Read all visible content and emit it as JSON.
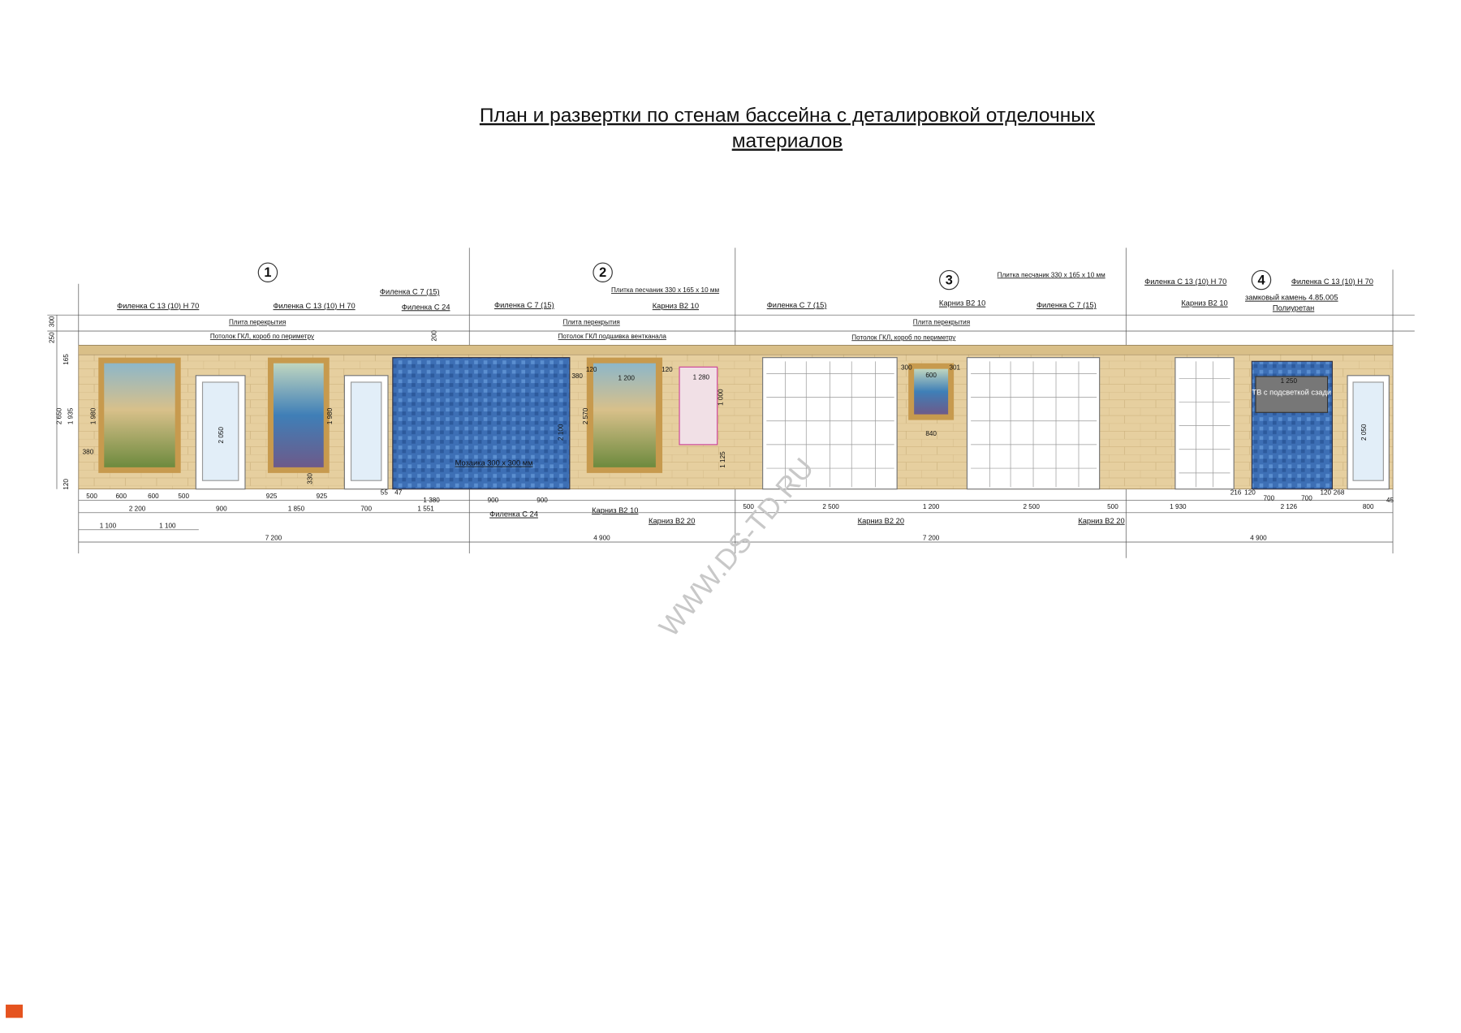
{
  "title": [
    "План и развертки по стенам бассейна с деталировкой отделочных",
    "материалов"
  ],
  "walls": [
    "1",
    "2",
    "3",
    "4"
  ],
  "labels": [
    "Филенка С 13 (10) Н 70",
    "Филенка С 13 (10) Н 70",
    "Филенка С 7 (15)",
    "Филенка С 24",
    "Филенка С 7 (15)",
    "Плитка песчаник 330 x 165 x 10 мм",
    "Карниз В2 10",
    "Филенка С 7 (15)",
    "Карниз В2 10",
    "Филенка С 7 (15)",
    "Плитка песчаник 330 x 165 x 10 мм",
    "Филенка С 13 (10) Н 70",
    "Карниз В2 10",
    "Филенка С 13 (10) Н 70",
    "замковый камень 4.85.005",
    "Полиуретан",
    "Плита перекрытия",
    "Потолок ГКЛ, короб по периметру",
    "Плита перекрытия",
    "Потолок ГКЛ подшивка вентканала",
    "Плита перекрытия",
    "Потолок ГКЛ, короб по периметру",
    "Мозаика 300 x 300 мм",
    "ТВ с подсветкой сзади",
    "Филенка С 24",
    "Карниз В2 10",
    "Карниз В2 20",
    "Карниз В2 20",
    "Карниз В2 20"
  ],
  "dims": [
    "500",
    "600",
    "600",
    "500",
    "925",
    "925",
    "55",
    "47",
    "1 380",
    "900",
    "900",
    "216",
    "120",
    "700",
    "700",
    "120",
    "268",
    "45",
    "2 200",
    "900",
    "1 850",
    "700",
    "1 551",
    "500",
    "2 500",
    "1 200",
    "2 500",
    "500",
    "1 930",
    "2 126",
    "800",
    "1 100",
    "1 100",
    "7 200",
    "4 900",
    "7 200",
    "4 900",
    "300",
    "250",
    "2 650",
    "1 935",
    "165",
    "120",
    "2 050",
    "1 980",
    "2 100",
    "2 570",
    "1 000",
    "1 125",
    "2 050",
    "1 280",
    "1 200",
    "380",
    "120",
    "120",
    "300",
    "301",
    "600",
    "840",
    "1 250",
    "200",
    "330",
    "1 980",
    "380"
  ],
  "watermark": "WWW.DS-TD.RU"
}
